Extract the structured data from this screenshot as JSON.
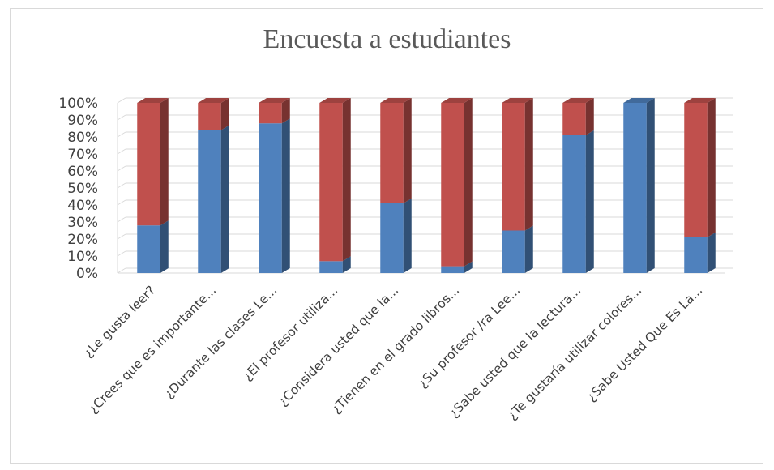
{
  "chart_data": {
    "type": "bar",
    "stacked": "percent",
    "title": "Encuesta a estudiantes",
    "xlabel": "",
    "ylabel": "",
    "ylim": [
      0,
      100
    ],
    "y_ticks": [
      "0%",
      "10%",
      "20%",
      "30%",
      "40%",
      "50%",
      "60%",
      "70%",
      "80%",
      "90%",
      "100%"
    ],
    "grid": true,
    "legend": "none",
    "categories": [
      "¿Le gusta leer?",
      "¿Crees que es importante...",
      "¿Durante las clases Le...",
      "¿El profesor utiliza...",
      "¿Considera usted que la...",
      "¿Tienen en el grado libros...",
      "¿Su profesor /ra Lee...",
      "¿Sabe usted que la lectura...",
      "¿Te gustaría utilizar colores...",
      "¿Sabe Usted Que Es La..."
    ],
    "series": [
      {
        "color": "#4f81bd",
        "values": [
          28,
          84,
          88,
          7,
          41,
          4,
          25,
          81,
          100,
          21
        ]
      },
      {
        "color": "#c0504d",
        "values": [
          72,
          16,
          12,
          93,
          59,
          96,
          75,
          19,
          0,
          79
        ]
      }
    ]
  }
}
